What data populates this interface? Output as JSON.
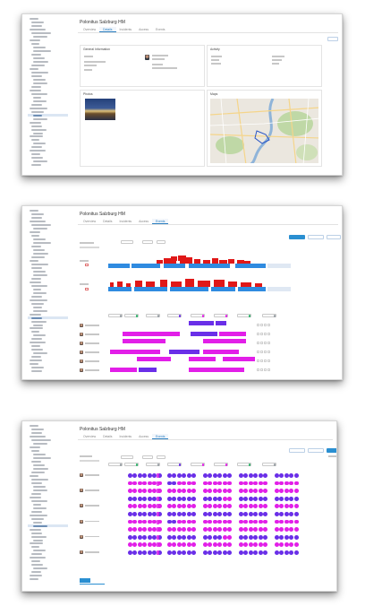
{
  "page": {
    "background": "#ffffff"
  },
  "screens": [
    {
      "title": "Polonitus Salzburg HM",
      "tabs": [
        "Overview",
        "Details",
        "Incidents",
        "Access",
        "Events"
      ],
      "active_tab": 1,
      "sections": {
        "left_top": "General Information",
        "right_top": "Activity",
        "left_bottom": "Photos",
        "right_bottom": "Maps"
      }
    },
    {
      "title": "Polonitus Salzburg HM",
      "tabs": [
        "Overview",
        "Details",
        "Incidents",
        "Access",
        "Events"
      ],
      "active_tab": 4
    },
    {
      "title": "Polonitus Salzburg HM",
      "tabs": [
        "Overview",
        "Details",
        "Incidents",
        "Access",
        "Events"
      ],
      "active_tab": 4
    }
  ],
  "colors": {
    "accent": "#2a7fc1",
    "schedule_blue": "#2f8be0",
    "schedule_red": "#e01818",
    "schedule_purple": "#6a2fe8",
    "schedule_magenta": "#e21fe8",
    "map_water": "#8fb4d9",
    "map_green": "#bfd8a6"
  },
  "icons": [
    "folder-tree-icon",
    "avatar-photo",
    "map-route"
  ]
}
